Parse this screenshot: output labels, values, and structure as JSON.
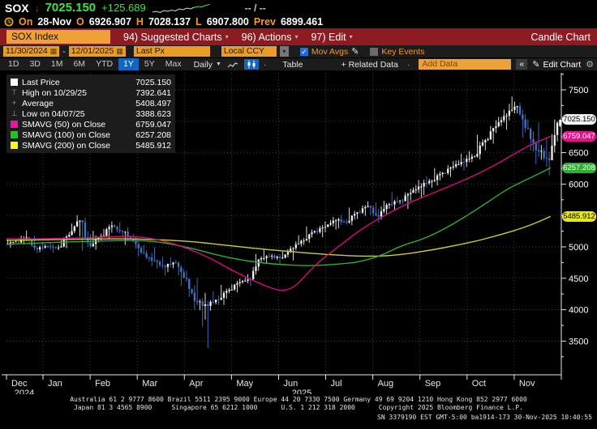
{
  "icons": {
    "down_arrow": "↓",
    "caret": "▾",
    "tri_down": "▼",
    "check": "✓",
    "pencil": "✎",
    "gear": "⚙",
    "laquo": "«",
    "dot": "·",
    "plus": "+",
    "calendar": "▦",
    "high_marker": "⊤",
    "avg_marker": "+",
    "low_marker": "⊥"
  },
  "quote": {
    "ticker": "SOX",
    "last": "7025.150",
    "change": "+125.689",
    "bid_ask": "-- / --",
    "date_label": "On",
    "date": "28-Nov",
    "open_label": "O",
    "open": "6926.907",
    "high_label": "H",
    "high": "7028.137",
    "low_label": "L",
    "low": "6907.800",
    "prev_label": "Prev",
    "prev": "6899.461",
    "spark": [
      11,
      10,
      11.5,
      9,
      10,
      8.5,
      9.5,
      7,
      8,
      6,
      7,
      5,
      4,
      4.5,
      2.5,
      1.5
    ]
  },
  "menu_bar": {
    "security": "SOX Index",
    "items": [
      {
        "label": "94) Suggested Charts"
      },
      {
        "label": "96) Actions"
      },
      {
        "label": "97) Edit"
      }
    ],
    "right": "Candle Chart"
  },
  "toolbar": {
    "date_from": "11/30/2024",
    "date_to": "12/01/2025",
    "price_field": "Last Px",
    "currency": "Local CCY",
    "mov_avgs_label": "Mov Avgs",
    "key_events_label": "Key Events"
  },
  "period_bar": {
    "ranges": [
      "1D",
      "3D",
      "1M",
      "6M",
      "YTD",
      "1Y",
      "5Y",
      "Max"
    ],
    "active_range": "1Y",
    "frequency": "Daily",
    "table_label": "Table",
    "related_data": "+ Related Data",
    "add_data": "Add Data",
    "edit_chart": "Edit Chart"
  },
  "legend": {
    "rows": [
      {
        "icon": "white-square",
        "label": "Last Price",
        "value": "7025.150"
      },
      {
        "icon": "high-marker",
        "label": "High on 10/29/25",
        "value": "7392.641"
      },
      {
        "icon": "average-marker",
        "label": "Average",
        "value": "5408.497"
      },
      {
        "icon": "low-marker",
        "label": "Low on 04/07/25",
        "value": "3388.623"
      },
      {
        "icon": "magenta-square",
        "label": "SMAVG (50) on Close",
        "value": "6759.047"
      },
      {
        "icon": "green-square",
        "label": "SMAVG (100) on Close",
        "value": "6257.208"
      },
      {
        "icon": "yellow-square",
        "label": "SMAVG (200) on Close",
        "value": "5485.912"
      }
    ]
  },
  "colors": {
    "up": "#f2f2f2",
    "down": "#3f76cc",
    "sma50": "#d40d7e",
    "sma100": "#2fae33",
    "sma200": "#c9cf33",
    "grid": "#5a5a5a",
    "axis": "#e8e8e8",
    "tick_text": "#ffffff"
  },
  "chart_data": {
    "type": "candlestick",
    "security": "SOX Index",
    "period": "1Y Daily, 11/30/2024 - 12/01/2025",
    "x_axis": {
      "months": [
        "Dec",
        "Jan",
        "Feb",
        "Mar",
        "Apr",
        "May",
        "Jun",
        "Jul",
        "Aug",
        "Sep",
        "Oct",
        "Nov"
      ],
      "year_start": "2024",
      "year_mid": "2025"
    },
    "y_axis": {
      "min": 3250,
      "max": 7800,
      "grid": [
        3500,
        4000,
        4500,
        5000,
        5500,
        6000,
        6500,
        7000,
        7500
      ]
    },
    "stats": {
      "last": 7025.15,
      "high": 7392.641,
      "high_date": "10/29/25",
      "average": 5408.497,
      "low": 3388.623,
      "low_date": "04/07/25",
      "sma50_last": 6759.047,
      "sma100_last": 6257.208,
      "sma200_last": 5485.912
    },
    "first_open": 5045,
    "weekly_bars": [
      [
        5085,
        5120,
        4985
      ],
      [
        5150,
        5260,
        5040
      ],
      [
        4960,
        5175,
        4900
      ],
      [
        5010,
        5080,
        4915
      ],
      [
        4990,
        5075,
        4905
      ],
      [
        5190,
        5235,
        4975
      ],
      [
        5420,
        5505,
        5165
      ],
      [
        5010,
        5465,
        4935
      ],
      [
        5170,
        5255,
        4955
      ],
      [
        5340,
        5405,
        5130
      ],
      [
        5240,
        5395,
        5165
      ],
      [
        5100,
        5315,
        5030
      ],
      [
        4900,
        5155,
        4845
      ],
      [
        4780,
        4995,
        4695
      ],
      [
        4680,
        4845,
        4545
      ],
      [
        4750,
        4835,
        4595
      ],
      [
        4490,
        4765,
        4380
      ],
      [
        4120,
        4505,
        3995
      ],
      [
        4060,
        4265,
        3388.623
      ],
      [
        4160,
        4295,
        3985
      ],
      [
        4320,
        4395,
        4075
      ],
      [
        4440,
        4495,
        4275
      ],
      [
        4480,
        4565,
        4375
      ],
      [
        4820,
        4885,
        4495
      ],
      [
        4860,
        4965,
        4745
      ],
      [
        4830,
        4925,
        4715
      ],
      [
        4980,
        5015,
        4785
      ],
      [
        5100,
        5185,
        4945
      ],
      [
        5250,
        5325,
        5065
      ],
      [
        5320,
        5405,
        5155
      ],
      [
        5420,
        5475,
        5275
      ],
      [
        5390,
        5505,
        5295
      ],
      [
        5550,
        5625,
        5345
      ],
      [
        5650,
        5725,
        5495
      ],
      [
        5480,
        5705,
        5385
      ],
      [
        5680,
        5735,
        5435
      ],
      [
        5740,
        5875,
        5575
      ],
      [
        5860,
        5925,
        5605
      ],
      [
        5960,
        6065,
        5785
      ],
      [
        6050,
        6125,
        5825
      ],
      [
        6180,
        6255,
        5975
      ],
      [
        6280,
        6365,
        6115
      ],
      [
        6350,
        6485,
        6215
      ],
      [
        6440,
        6525,
        6275
      ],
      [
        6700,
        6785,
        6395
      ],
      [
        6920,
        7015,
        6645
      ],
      [
        7090,
        7185,
        6865
      ],
      [
        7240,
        7392.641,
        7015
      ],
      [
        6880,
        7295,
        6735
      ],
      [
        6520,
        6985,
        6315
      ],
      [
        6380,
        6725,
        6135
      ],
      [
        7025.15,
        7028.137,
        6395
      ]
    ],
    "last_bar": {
      "o": 6926.907,
      "h": 7028.137,
      "l": 6907.8,
      "c": 7025.15
    },
    "sma50": [
      [
        0,
        5130
      ],
      [
        4,
        5125
      ],
      [
        8,
        5150
      ],
      [
        11,
        5170
      ],
      [
        13,
        5155
      ],
      [
        15,
        5085
      ],
      [
        17,
        4975
      ],
      [
        19,
        4830
      ],
      [
        21,
        4640
      ],
      [
        23,
        4470
      ],
      [
        25,
        4330
      ],
      [
        26,
        4300
      ],
      [
        27,
        4360
      ],
      [
        28,
        4540
      ],
      [
        29,
        4720
      ],
      [
        30,
        4860
      ],
      [
        31,
        4990
      ],
      [
        32,
        5120
      ],
      [
        33,
        5250
      ],
      [
        34,
        5360
      ],
      [
        35,
        5460
      ],
      [
        36,
        5550
      ],
      [
        37,
        5640
      ],
      [
        38,
        5720
      ],
      [
        39,
        5790
      ],
      [
        40,
        5860
      ],
      [
        41,
        5930
      ],
      [
        43,
        6070
      ],
      [
        45,
        6230
      ],
      [
        47,
        6420
      ],
      [
        49,
        6620
      ],
      [
        51,
        6759.047
      ]
    ],
    "sma100": [
      [
        0,
        5040
      ],
      [
        4,
        5070
      ],
      [
        8,
        5090
      ],
      [
        12,
        5105
      ],
      [
        14,
        5085
      ],
      [
        16,
        5030
      ],
      [
        18,
        4950
      ],
      [
        20,
        4860
      ],
      [
        22,
        4790
      ],
      [
        24,
        4745
      ],
      [
        26,
        4715
      ],
      [
        28,
        4700
      ],
      [
        30,
        4710
      ],
      [
        32,
        4740
      ],
      [
        33,
        4760
      ],
      [
        35,
        4850
      ],
      [
        37,
        5020
      ],
      [
        39,
        5120
      ],
      [
        41,
        5280
      ],
      [
        43,
        5480
      ],
      [
        45,
        5700
      ],
      [
        47,
        5930
      ],
      [
        49,
        6090
      ],
      [
        51,
        6257.208
      ]
    ],
    "sma200": [
      [
        0,
        5105
      ],
      [
        4,
        5115
      ],
      [
        8,
        5125
      ],
      [
        12,
        5130
      ],
      [
        16,
        5100
      ],
      [
        18,
        5075
      ],
      [
        20,
        5035
      ],
      [
        22,
        5000
      ],
      [
        24,
        4965
      ],
      [
        26,
        4935
      ],
      [
        28,
        4905
      ],
      [
        30,
        4880
      ],
      [
        32,
        4860
      ],
      [
        34,
        4850
      ],
      [
        36,
        4860
      ],
      [
        38,
        4900
      ],
      [
        40,
        4955
      ],
      [
        42,
        5020
      ],
      [
        44,
        5090
      ],
      [
        46,
        5180
      ],
      [
        48,
        5280
      ],
      [
        49,
        5340
      ],
      [
        50,
        5410
      ],
      [
        51,
        5485.912
      ]
    ],
    "badges": [
      {
        "text": "7025.150",
        "bg": "#f2f2f2",
        "fg": "#000000",
        "value": 7025.15
      },
      {
        "text": "6759.047",
        "bg": "#e3108b",
        "fg": "#ffffff",
        "value": 6759.047
      },
      {
        "text": "6257.208",
        "bg": "#2fae33",
        "fg": "#ffffff",
        "value": 6257.208
      },
      {
        "text": "5485.912",
        "bg": "#e7e712",
        "fg": "#000000",
        "value": 5485.912
      }
    ]
  },
  "footer": {
    "line1": "Australia 61 2 9777 8600 Brazil 5511 2395 9000 Europe 44 20 7330 7500 Germany 49 69 9204 1210 Hong Kong 852 2977 6000",
    "line2": "Japan 81 3 4565 8900     Singapore 65 6212 1000      U.S. 1 212 318 2000      Copyright 2025 Bloomberg Finance L.P.",
    "line3": "SN 3379190 EST  GMT-5:00 ba1914-173 30-Nov-2025 10:40:55"
  }
}
